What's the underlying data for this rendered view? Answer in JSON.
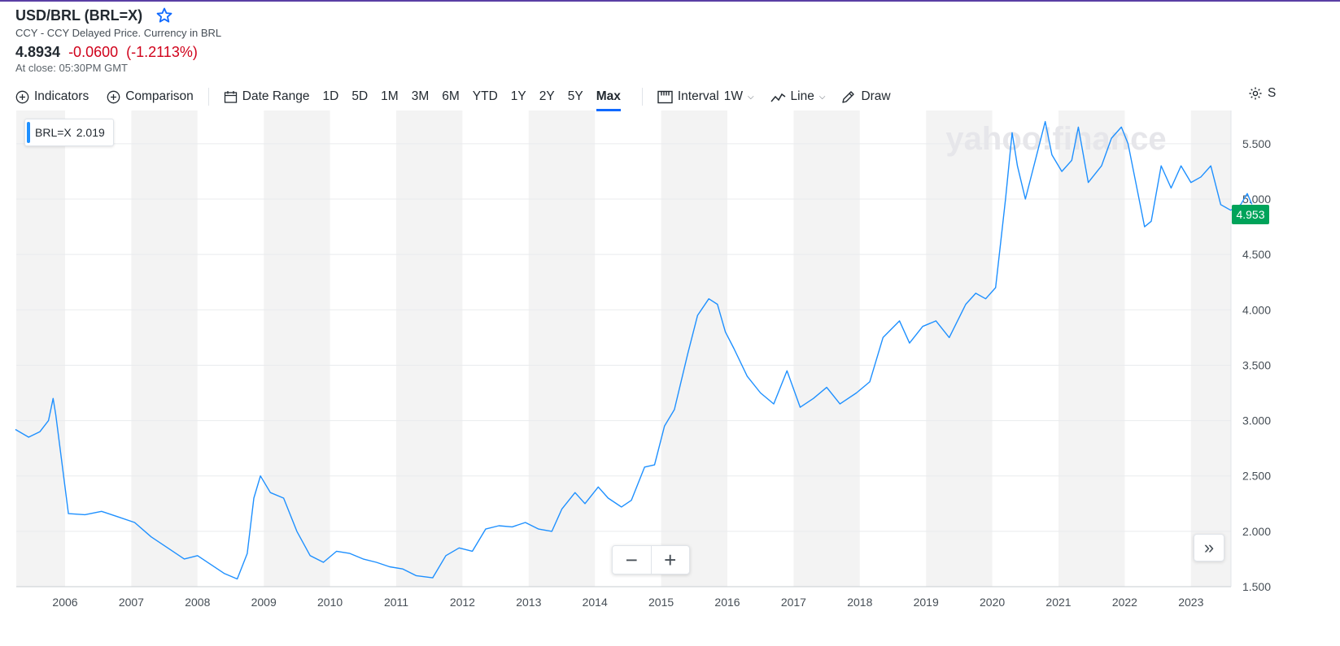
{
  "header": {
    "title": "USD/BRL (BRL=X)",
    "subtitle": "CCY - CCY Delayed Price. Currency in BRL",
    "price": "4.8934",
    "change": "-0.0600",
    "change_pct": "(-1.2113%)",
    "close_note": "At close: 05:30PM GMT"
  },
  "toolbar": {
    "indicators": "Indicators",
    "comparison": "Comparison",
    "date_range": "Date Range",
    "ranges": [
      "1D",
      "5D",
      "1M",
      "3M",
      "6M",
      "YTD",
      "1Y",
      "2Y",
      "5Y",
      "Max"
    ],
    "active_range": "Max",
    "interval_label": "Interval",
    "interval_value": "1W",
    "line_label": "Line",
    "draw_label": "Draw",
    "settings_label": "S"
  },
  "legend": {
    "symbol": "BRL=X",
    "value": "2.019"
  },
  "last_price_tag": "4.953",
  "watermark": "yahoo!finance",
  "colors": {
    "line": "#1e90ff",
    "negative": "#d0021b",
    "last_tag": "#00a35a",
    "band": "#f3f3f3",
    "accent": "#0f69ff"
  },
  "chart_data": {
    "type": "line",
    "series": [
      {
        "name": "BRL=X",
        "x": [
          2005.25,
          2005.45,
          2005.62,
          2005.75,
          2005.82,
          2005.86,
          2006.05,
          2006.3,
          2006.55,
          2006.8,
          2007.05,
          2007.3,
          2007.55,
          2007.8,
          2008.0,
          2008.2,
          2008.4,
          2008.6,
          2008.75,
          2008.85,
          2008.95,
          2009.1,
          2009.3,
          2009.5,
          2009.7,
          2009.9,
          2010.1,
          2010.3,
          2010.5,
          2010.7,
          2010.9,
          2011.1,
          2011.3,
          2011.55,
          2011.75,
          2011.95,
          2012.15,
          2012.35,
          2012.55,
          2012.75,
          2012.95,
          2013.15,
          2013.35,
          2013.5,
          2013.7,
          2013.85,
          2014.05,
          2014.2,
          2014.4,
          2014.55,
          2014.75,
          2014.9,
          2015.05,
          2015.2,
          2015.4,
          2015.55,
          2015.72,
          2015.85,
          2015.97,
          2016.1,
          2016.3,
          2016.5,
          2016.7,
          2016.9,
          2017.1,
          2017.3,
          2017.5,
          2017.7,
          2017.95,
          2018.15,
          2018.35,
          2018.6,
          2018.75,
          2018.95,
          2019.15,
          2019.35,
          2019.6,
          2019.75,
          2019.9,
          2020.05,
          2020.2,
          2020.3,
          2020.38,
          2020.5,
          2020.65,
          2020.8,
          2020.9,
          2021.05,
          2021.2,
          2021.3,
          2021.45,
          2021.65,
          2021.8,
          2021.95,
          2022.05,
          2022.2,
          2022.3,
          2022.4,
          2022.55,
          2022.7,
          2022.85,
          2023.0,
          2023.15,
          2023.3,
          2023.45,
          2023.6,
          2023.75,
          2023.85,
          2023.92
        ],
        "values": [
          2.92,
          2.85,
          2.9,
          3.0,
          3.2,
          3.05,
          2.16,
          2.15,
          2.18,
          2.13,
          2.08,
          1.95,
          1.85,
          1.75,
          1.78,
          1.7,
          1.62,
          1.57,
          1.8,
          2.3,
          2.5,
          2.35,
          2.3,
          2.0,
          1.78,
          1.72,
          1.82,
          1.8,
          1.75,
          1.72,
          1.68,
          1.66,
          1.6,
          1.58,
          1.78,
          1.85,
          1.82,
          2.02,
          2.05,
          2.04,
          2.08,
          2.02,
          2.0,
          2.2,
          2.35,
          2.25,
          2.4,
          2.3,
          2.22,
          2.28,
          2.58,
          2.6,
          2.95,
          3.1,
          3.6,
          3.95,
          4.1,
          4.05,
          3.8,
          3.65,
          3.4,
          3.25,
          3.15,
          3.45,
          3.12,
          3.2,
          3.3,
          3.15,
          3.25,
          3.35,
          3.75,
          3.9,
          3.7,
          3.85,
          3.9,
          3.75,
          4.05,
          4.15,
          4.1,
          4.2,
          5.0,
          5.6,
          5.3,
          5.0,
          5.35,
          5.7,
          5.4,
          5.25,
          5.35,
          5.65,
          5.15,
          5.3,
          5.55,
          5.65,
          5.5,
          5.05,
          4.75,
          4.8,
          5.3,
          5.1,
          5.3,
          5.15,
          5.2,
          5.3,
          4.95,
          4.9,
          4.95,
          5.05,
          4.953
        ]
      }
    ],
    "ylim": [
      1.5,
      5.8
    ],
    "yticks": [
      "1.500",
      "2.000",
      "2.500",
      "3.000",
      "3.500",
      "4.000",
      "4.500",
      "5.000",
      "5.500"
    ],
    "xticks": [
      "2006",
      "2007",
      "2008",
      "2009",
      "2010",
      "2011",
      "2012",
      "2013",
      "2014",
      "2015",
      "2016",
      "2017",
      "2018",
      "2019",
      "2020",
      "2021",
      "2022",
      "2023"
    ],
    "grid": true
  }
}
